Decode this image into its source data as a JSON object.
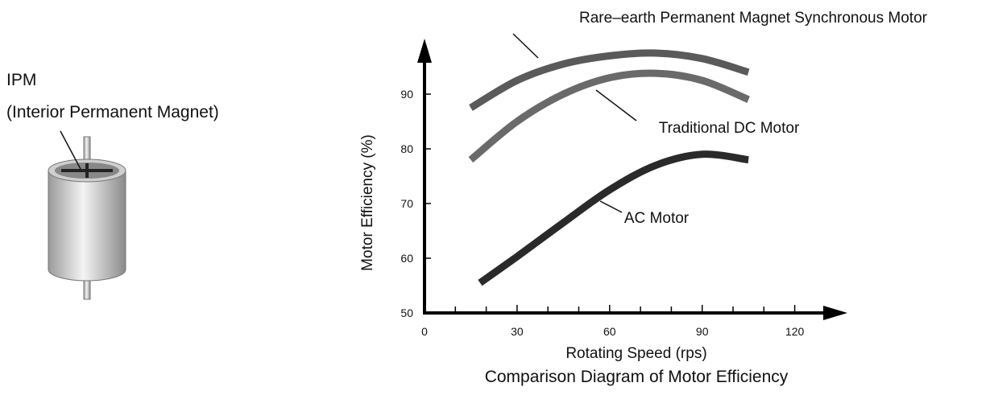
{
  "diagram": {
    "label": "IPM",
    "sublabel": "(Interior Permanent Magnet)"
  },
  "chart_data": {
    "type": "line",
    "title": "Comparison Diagram of Motor Efficiency",
    "xlabel": "Rotating Speed (rps)",
    "ylabel": "Motor Efficiency (%)",
    "xlim": [
      0,
      135
    ],
    "ylim": [
      50,
      100
    ],
    "xticks": [
      0,
      30,
      60,
      90,
      120
    ],
    "x_minor_ticks": [
      10,
      20,
      40,
      50,
      70,
      80,
      100,
      110
    ],
    "yticks": [
      50,
      60,
      70,
      80,
      90
    ],
    "series": [
      {
        "name": "Rare–earth Permanent Magnet Synchronous Motor",
        "color": "#5a5a5a",
        "x": [
          15,
          30,
          45,
          60,
          75,
          90,
          105
        ],
        "values": [
          87.5,
          92.5,
          95.5,
          97,
          97.5,
          96.5,
          94
        ]
      },
      {
        "name": "Traditional DC Motor",
        "color": "#6a6a6a",
        "x": [
          15,
          30,
          45,
          60,
          75,
          90,
          105
        ],
        "values": [
          78,
          85,
          90,
          93,
          93.8,
          92.5,
          89
        ]
      },
      {
        "name": "AC Motor",
        "color": "#2a2a2a",
        "x": [
          18,
          30,
          45,
          60,
          75,
          90,
          105
        ],
        "values": [
          55.5,
          60.3,
          66.5,
          72.5,
          77,
          79,
          78
        ]
      }
    ]
  }
}
